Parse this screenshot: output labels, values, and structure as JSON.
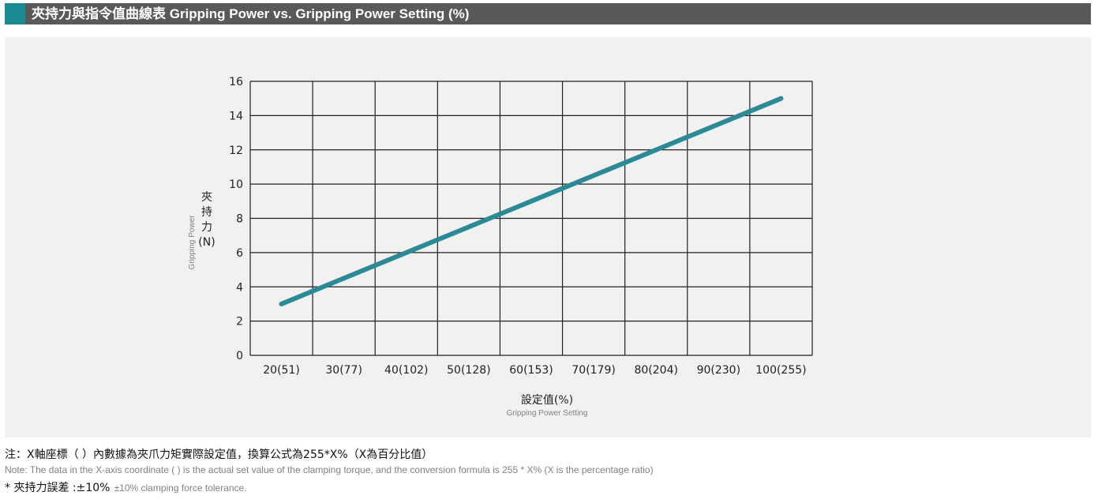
{
  "header": {
    "title": "夾持力與指令值曲線表 Gripping Power vs. Gripping Power Setting (%)",
    "accent_color": "#1a8a93",
    "bar_color": "#58595b"
  },
  "chart_data": {
    "type": "line",
    "categories": [
      "20(51)",
      "30(77)",
      "40(102)",
      "50(128)",
      "60(153)",
      "70(179)",
      "80(204)",
      "90(230)",
      "100(255)"
    ],
    "series": [
      {
        "values": [
          3.0,
          4.5,
          6.0,
          7.5,
          9.0,
          10.5,
          12.0,
          13.5,
          15.0
        ],
        "color": "#2b8a96"
      }
    ],
    "ylim": [
      0,
      16
    ],
    "yticks": [
      "0",
      "2",
      "4",
      "6",
      "8",
      "10",
      "12",
      "14",
      "16"
    ],
    "ylabel_zh": "夾持力(N)",
    "ylabel_en": "Gripping Power",
    "xlabel_zh": "設定值(%)",
    "xlabel_en": "Gripping Power Setting",
    "grid": true
  },
  "notes": {
    "line1_zh": "注：X軸座標（ ）內數據為夾爪力矩實際設定值，換算公式為255*X%（X為百分比值）",
    "line1_en": "Note: The data in the X-axis coordinate ( ) is the actual set value of the clamping torque, and the conversion formula is 255 * X% (X is the percentage ratio)",
    "line2_zh": "* 夾持力誤差 :±10%",
    "line2_en": "±10% clamping force tolerance."
  }
}
